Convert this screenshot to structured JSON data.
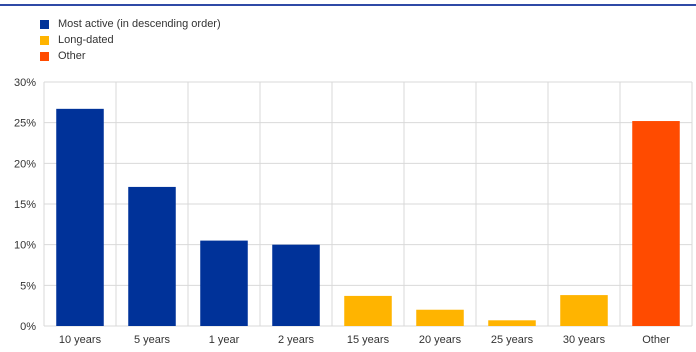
{
  "chart_data": {
    "type": "bar",
    "categories": [
      "10 years",
      "5 years",
      "1 year",
      "2 years",
      "15 years",
      "20 years",
      "25 years",
      "30 years",
      "Other"
    ],
    "values": [
      26.7,
      17.1,
      10.5,
      10.0,
      3.7,
      2.0,
      0.7,
      3.8,
      25.2
    ],
    "series_group": [
      0,
      0,
      0,
      0,
      1,
      1,
      1,
      1,
      2
    ],
    "legend": [
      {
        "label": "Most active (in descending order)",
        "color": "#003299"
      },
      {
        "label": "Long-dated",
        "color": "#ffb400"
      },
      {
        "label": "Other",
        "color": "#ff4b00"
      }
    ],
    "title": "",
    "xlabel": "",
    "ylabel": "",
    "ylim": [
      0,
      30
    ],
    "yticks": [
      0,
      5,
      10,
      15,
      20,
      25,
      30
    ],
    "ytick_labels": [
      "0%",
      "5%",
      "10%",
      "15%",
      "20%",
      "25%",
      "30%"
    ],
    "grid": true,
    "legend_position": "top-left"
  }
}
